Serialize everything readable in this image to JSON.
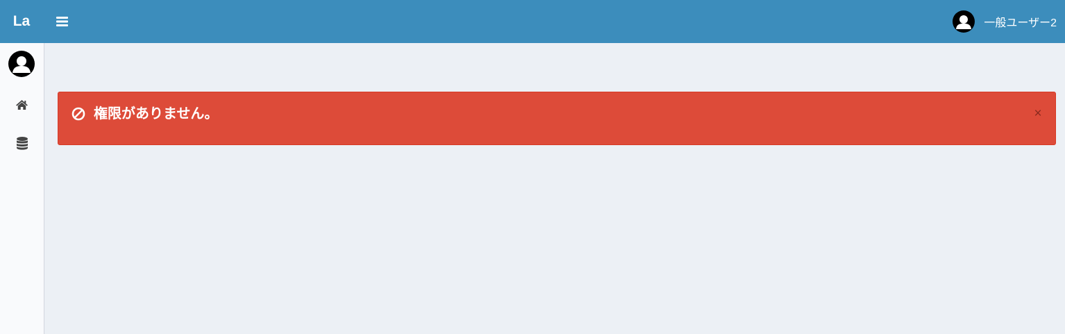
{
  "header": {
    "logo_text": "La",
    "menu_icon": "bars-icon",
    "user_name": "一般ユーザー2",
    "user_avatar_icon": "user-avatar-icon"
  },
  "sidebar": {
    "avatar_icon": "user-avatar-icon",
    "items": [
      {
        "icon": "home-icon"
      },
      {
        "icon": "database-icon"
      }
    ]
  },
  "alert": {
    "icon": "ban-icon",
    "message": "権限がありません。",
    "close_label": "×",
    "colors": {
      "background": "#dd4b39",
      "text": "#ffffff"
    }
  },
  "colors": {
    "header": "#3c8dbc",
    "content_bg": "#ecf0f5",
    "sidebar_bg": "#f9fafc"
  }
}
